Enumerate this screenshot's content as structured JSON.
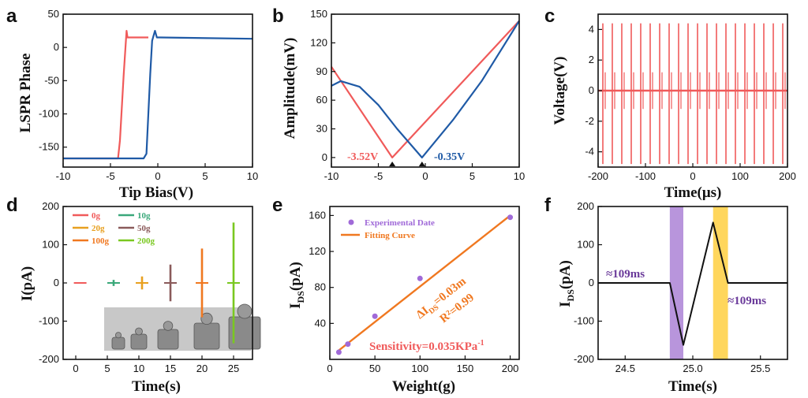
{
  "chart_data": [
    {
      "panel": "a",
      "type": "line",
      "xlabel": "Tip Bias(V)",
      "ylabel": "LSPR Phase",
      "xlim": [
        -10,
        10
      ],
      "ylim": [
        -180,
        50
      ],
      "xticks": [
        -10,
        -5,
        0,
        5,
        10
      ],
      "yticks": [
        50,
        0,
        -50,
        -100,
        -150
      ],
      "series": [
        {
          "color": "#f05a5a",
          "x": [
            -10,
            -4.2,
            -4.0,
            -3.6,
            -3.3,
            -3.2,
            -3.0,
            -1.0
          ],
          "y": [
            -167,
            -167,
            -140,
            -40,
            25,
            15,
            15,
            15
          ]
        },
        {
          "color": "#1f5aa6",
          "x": [
            -10,
            -1.5,
            -1.2,
            -0.8,
            -0.6,
            -0.3,
            -0.1,
            0.2,
            10
          ],
          "y": [
            -167,
            -167,
            -160,
            -40,
            10,
            25,
            15,
            15,
            13
          ]
        }
      ]
    },
    {
      "panel": "b",
      "type": "line",
      "ylabel": "Amplitude(mV)",
      "xlim": [
        -10,
        10
      ],
      "ylim": [
        -10,
        150
      ],
      "xticks": [
        -10,
        -5,
        0,
        5,
        10
      ],
      "yticks": [
        0,
        30,
        60,
        90,
        120,
        150
      ],
      "annotations": [
        "-3.52V",
        "-0.35V"
      ],
      "minima_x": [
        -3.52,
        -0.35
      ],
      "series": [
        {
          "color": "#f05a5a",
          "x": [
            -10,
            -3.52,
            10
          ],
          "y": [
            95,
            0,
            143
          ]
        },
        {
          "color": "#1f5aa6",
          "x": [
            -10,
            -9,
            -7,
            -5,
            -3,
            -0.35,
            3,
            6,
            10
          ],
          "y": [
            75,
            80,
            74,
            55,
            30,
            0,
            40,
            80,
            143
          ]
        }
      ]
    },
    {
      "panel": "c",
      "type": "line",
      "xlabel": "Time(μs)",
      "ylabel": "Voltage(V)",
      "xlim": [
        -200,
        200
      ],
      "ylim": [
        -5,
        5
      ],
      "xticks": [
        -200,
        -100,
        0,
        100,
        200
      ],
      "yticks": [
        4,
        2,
        0,
        -2,
        -4
      ],
      "pulse_times": [
        -190,
        -170,
        -150,
        -130,
        -110,
        -90,
        -70,
        -50,
        -30,
        -10,
        10,
        30,
        50,
        70,
        90,
        110,
        130,
        150,
        170,
        190
      ],
      "pulse_peaks": [
        4.4,
        -4.8
      ],
      "series": [
        {
          "color": "#f05a5a"
        }
      ]
    },
    {
      "panel": "d",
      "type": "line",
      "xlabel": "Time(s)",
      "ylabel": "I(pA)",
      "xlim": [
        -2,
        28
      ],
      "ylim": [
        -200,
        200
      ],
      "xticks": [
        0,
        5,
        10,
        15,
        20,
        25
      ],
      "yticks": [
        200,
        100,
        0,
        -100,
        -200
      ],
      "series": [
        {
          "name": "0g",
          "color": "#f05a5a",
          "center": 0.7,
          "amp": 0
        },
        {
          "name": "10g",
          "color": "#3aa87a",
          "center": 6,
          "amp": 8
        },
        {
          "name": "20g",
          "color": "#e8a020",
          "center": 10.5,
          "amp": 17
        },
        {
          "name": "50g",
          "color": "#8a5a5a",
          "center": 15,
          "amp": 48
        },
        {
          "name": "100g",
          "color": "#f07820",
          "center": 20,
          "amp": 90
        },
        {
          "name": "200g",
          "color": "#7ac820",
          "center": 25,
          "amp": 158
        }
      ]
    },
    {
      "panel": "e",
      "type": "scatter",
      "xlabel": "Weight(g)",
      "xlim": [
        0,
        210
      ],
      "ylim": [
        0,
        170
      ],
      "xticks": [
        0,
        50,
        100,
        150,
        200
      ],
      "yticks": [
        40,
        80,
        120,
        160
      ],
      "points": {
        "name": "Experimental Date",
        "color": "#a06ad8",
        "x": [
          10,
          20,
          50,
          100,
          200
        ],
        "y": [
          8,
          17,
          48,
          90,
          158
        ]
      },
      "fit": {
        "name": "Fitting Curve",
        "color": "#f07820",
        "x": [
          10,
          200
        ],
        "y": [
          10,
          160
        ]
      },
      "annotations": {
        "equation": "ΔI",
        "r2": "R²=0.99",
        "sensitivity": "Sensitivity=0.035KPa"
      }
    },
    {
      "panel": "f",
      "type": "line",
      "xlabel": "Time(s)",
      "xlim": [
        24.3,
        25.7
      ],
      "ylim": [
        -200,
        200
      ],
      "xticks": [
        24.5,
        25.0,
        25.5
      ],
      "yticks": [
        200,
        100,
        0,
        -100,
        -200
      ],
      "series": [
        {
          "color": "#111111",
          "x": [
            24.3,
            24.83,
            24.93,
            25.15,
            25.26,
            25.7
          ],
          "y": [
            0,
            0,
            -162,
            158,
            0,
            0
          ]
        }
      ],
      "bands": [
        {
          "color": "#b08ad8",
          "x": [
            24.83,
            24.93
          ]
        },
        {
          "color": "#ffd24a",
          "x": [
            25.15,
            25.26
          ]
        }
      ],
      "annotations": [
        "≈109ms",
        "≈109ms"
      ]
    }
  ],
  "labels": {
    "panel_letters": [
      "a",
      "b",
      "c",
      "d",
      "e",
      "f"
    ],
    "ds_subscript": "DS",
    "ds_ylabel_main": "I",
    "ds_ylabel_unit": "(pA)",
    "e_eq_tail": "=0.03m",
    "e_sens_sup": "-1"
  }
}
